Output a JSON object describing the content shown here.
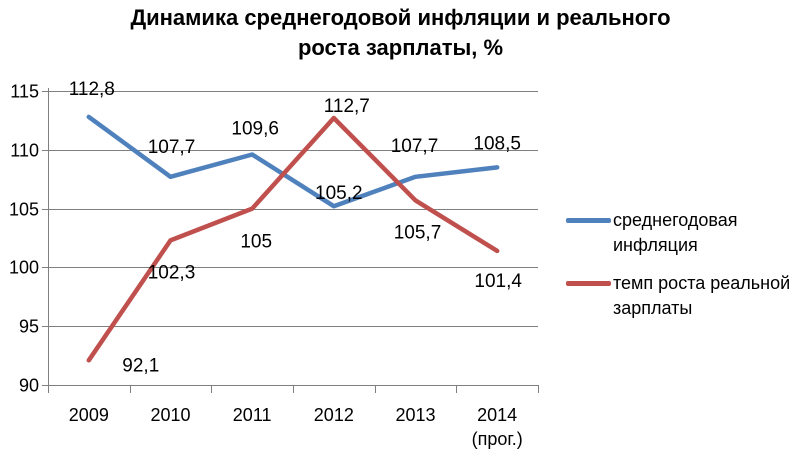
{
  "title_lines": [
    "Динамика среднегодовой инфляции и реального",
    "роста зарплаты, %"
  ],
  "chart_data": {
    "type": "line",
    "title": "Динамика среднегодовой инфляции и реального роста зарплаты, %",
    "categories": [
      "2009",
      "2010",
      "2011",
      "2012",
      "2013",
      "2014"
    ],
    "last_category_note": "(прог.)",
    "y_ticks": [
      115,
      110,
      105,
      100,
      95,
      90
    ],
    "ylim": [
      90,
      115
    ],
    "grid": true,
    "legend_position": "right",
    "decimal_separator": ",",
    "series": [
      {
        "name": "среднегодовая инфляция",
        "color": "#4F81BD",
        "values": [
          112.8,
          107.7,
          109.6,
          105.2,
          107.7,
          108.5
        ],
        "labels": [
          "112,8",
          "107,7",
          "109,6",
          "105,2",
          "107,7",
          "108,5"
        ],
        "label_offsets": [
          [
            3,
            -22
          ],
          [
            1,
            -24
          ],
          [
            3,
            -20
          ],
          [
            5,
            -7
          ],
          [
            -1,
            -25
          ],
          [
            0,
            -18
          ]
        ]
      },
      {
        "name": "темп роста реальной зарплаты",
        "color": "#C0504D",
        "values": [
          92.1,
          102.3,
          105,
          112.7,
          105.7,
          101.4
        ],
        "labels": [
          "92,1",
          "102,3",
          "105",
          "112,7",
          "105,7",
          "101,4"
        ],
        "label_offsets": [
          [
            52,
            11
          ],
          [
            1,
            38
          ],
          [
            4,
            39
          ],
          [
            13,
            -6
          ],
          [
            2,
            38
          ],
          [
            1,
            36
          ]
        ]
      }
    ],
    "colors": {
      "grid": "#7f7f7f",
      "axis": "#7f7f7f",
      "label_text": "#000000"
    }
  }
}
